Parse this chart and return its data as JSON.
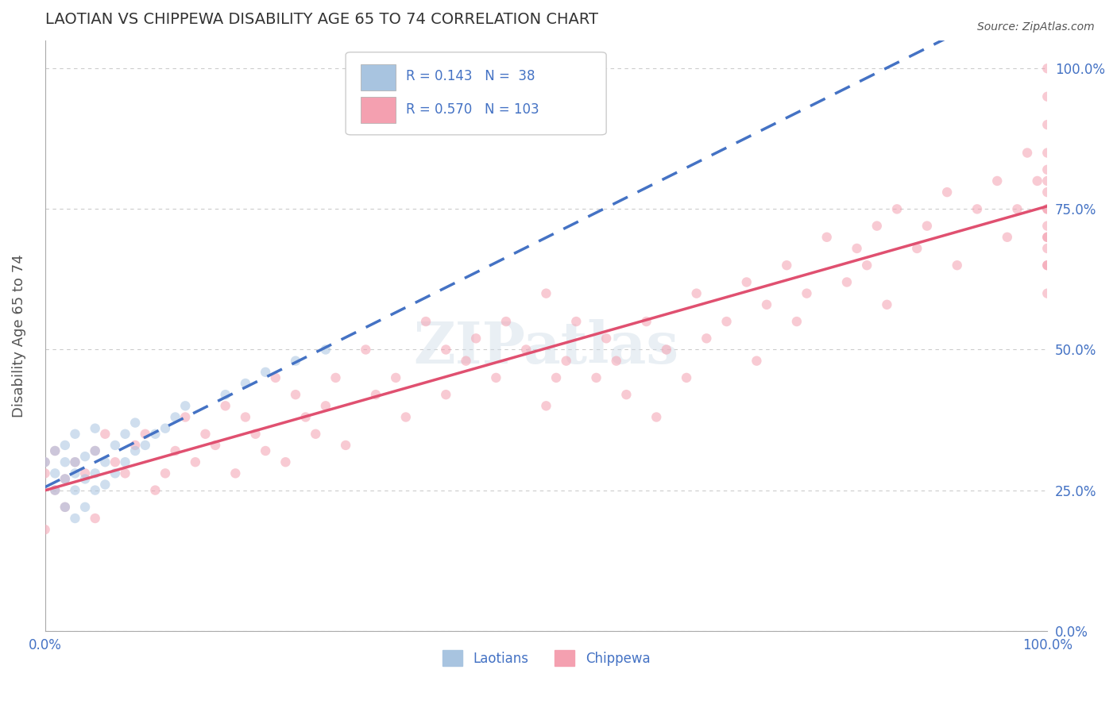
{
  "title": "LAOTIAN VS CHIPPEWA DISABILITY AGE 65 TO 74 CORRELATION CHART",
  "source_text": "Source: ZipAtlas.com",
  "xlabel": "",
  "ylabel": "Disability Age 65 to 74",
  "watermark": "ZIPatlas",
  "legend_r1": "R = 0.143",
  "legend_n1": "N =  38",
  "legend_r2": "R = 0.570",
  "legend_n2": "N = 103",
  "laotian_color": "#a8c4e0",
  "chippewa_color": "#f4a0b0",
  "laotian_line_color": "#4472c4",
  "chippewa_line_color": "#e05070",
  "background_color": "#ffffff",
  "grid_color": "#cccccc",
  "title_color": "#333333",
  "laotian_x": [
    0.0,
    0.01,
    0.01,
    0.01,
    0.02,
    0.02,
    0.02,
    0.02,
    0.03,
    0.03,
    0.03,
    0.03,
    0.03,
    0.04,
    0.04,
    0.04,
    0.05,
    0.05,
    0.05,
    0.05,
    0.06,
    0.06,
    0.07,
    0.07,
    0.08,
    0.08,
    0.09,
    0.09,
    0.1,
    0.11,
    0.12,
    0.13,
    0.14,
    0.18,
    0.2,
    0.22,
    0.25,
    0.28
  ],
  "laotian_y": [
    0.3,
    0.25,
    0.28,
    0.32,
    0.22,
    0.27,
    0.3,
    0.33,
    0.2,
    0.25,
    0.28,
    0.3,
    0.35,
    0.22,
    0.27,
    0.31,
    0.25,
    0.28,
    0.32,
    0.36,
    0.26,
    0.3,
    0.28,
    0.33,
    0.3,
    0.35,
    0.32,
    0.37,
    0.33,
    0.35,
    0.36,
    0.38,
    0.4,
    0.42,
    0.44,
    0.46,
    0.48,
    0.5
  ],
  "chippewa_x": [
    0.0,
    0.0,
    0.0,
    0.01,
    0.01,
    0.02,
    0.02,
    0.03,
    0.04,
    0.05,
    0.05,
    0.06,
    0.07,
    0.08,
    0.09,
    0.1,
    0.11,
    0.12,
    0.13,
    0.14,
    0.15,
    0.16,
    0.17,
    0.18,
    0.19,
    0.2,
    0.21,
    0.22,
    0.23,
    0.24,
    0.25,
    0.26,
    0.27,
    0.28,
    0.29,
    0.3,
    0.32,
    0.33,
    0.35,
    0.36,
    0.38,
    0.4,
    0.4,
    0.42,
    0.43,
    0.45,
    0.46,
    0.48,
    0.5,
    0.5,
    0.51,
    0.52,
    0.53,
    0.55,
    0.56,
    0.57,
    0.58,
    0.6,
    0.61,
    0.62,
    0.64,
    0.65,
    0.66,
    0.68,
    0.7,
    0.71,
    0.72,
    0.74,
    0.75,
    0.76,
    0.78,
    0.8,
    0.81,
    0.82,
    0.83,
    0.84,
    0.85,
    0.87,
    0.88,
    0.9,
    0.91,
    0.93,
    0.95,
    0.96,
    0.97,
    0.98,
    0.99,
    1.0,
    1.0,
    1.0,
    1.0,
    1.0,
    1.0,
    1.0,
    1.0,
    1.0,
    1.0,
    1.0,
    1.0,
    1.0,
    1.0,
    1.0,
    1.0
  ],
  "chippewa_y": [
    0.28,
    0.3,
    0.18,
    0.25,
    0.32,
    0.22,
    0.27,
    0.3,
    0.28,
    0.32,
    0.2,
    0.35,
    0.3,
    0.28,
    0.33,
    0.35,
    0.25,
    0.28,
    0.32,
    0.38,
    0.3,
    0.35,
    0.33,
    0.4,
    0.28,
    0.38,
    0.35,
    0.32,
    0.45,
    0.3,
    0.42,
    0.38,
    0.35,
    0.4,
    0.45,
    0.33,
    0.5,
    0.42,
    0.45,
    0.38,
    0.55,
    0.5,
    0.42,
    0.48,
    0.52,
    0.45,
    0.55,
    0.5,
    0.4,
    0.6,
    0.45,
    0.48,
    0.55,
    0.45,
    0.52,
    0.48,
    0.42,
    0.55,
    0.38,
    0.5,
    0.45,
    0.6,
    0.52,
    0.55,
    0.62,
    0.48,
    0.58,
    0.65,
    0.55,
    0.6,
    0.7,
    0.62,
    0.68,
    0.65,
    0.72,
    0.58,
    0.75,
    0.68,
    0.72,
    0.78,
    0.65,
    0.75,
    0.8,
    0.7,
    0.75,
    0.85,
    0.8,
    0.75,
    0.78,
    0.82,
    0.7,
    0.9,
    0.65,
    0.75,
    0.95,
    0.85,
    1.0,
    0.7,
    0.8,
    0.6,
    0.72,
    0.65,
    0.68
  ],
  "xlim": [
    0.0,
    1.0
  ],
  "ylim": [
    0.0,
    1.05
  ],
  "x_ticks": [
    0.0,
    1.0
  ],
  "x_tick_labels": [
    "0.0%",
    "100.0%"
  ],
  "y_ticks_right": [
    0.0,
    0.25,
    0.5,
    0.75,
    1.0
  ],
  "y_tick_labels_right": [
    "0.0%",
    "25.0%",
    "50.0%",
    "75.0%",
    "100.0%"
  ],
  "marker_size": 80,
  "marker_alpha": 0.55,
  "line_width": 2.0
}
